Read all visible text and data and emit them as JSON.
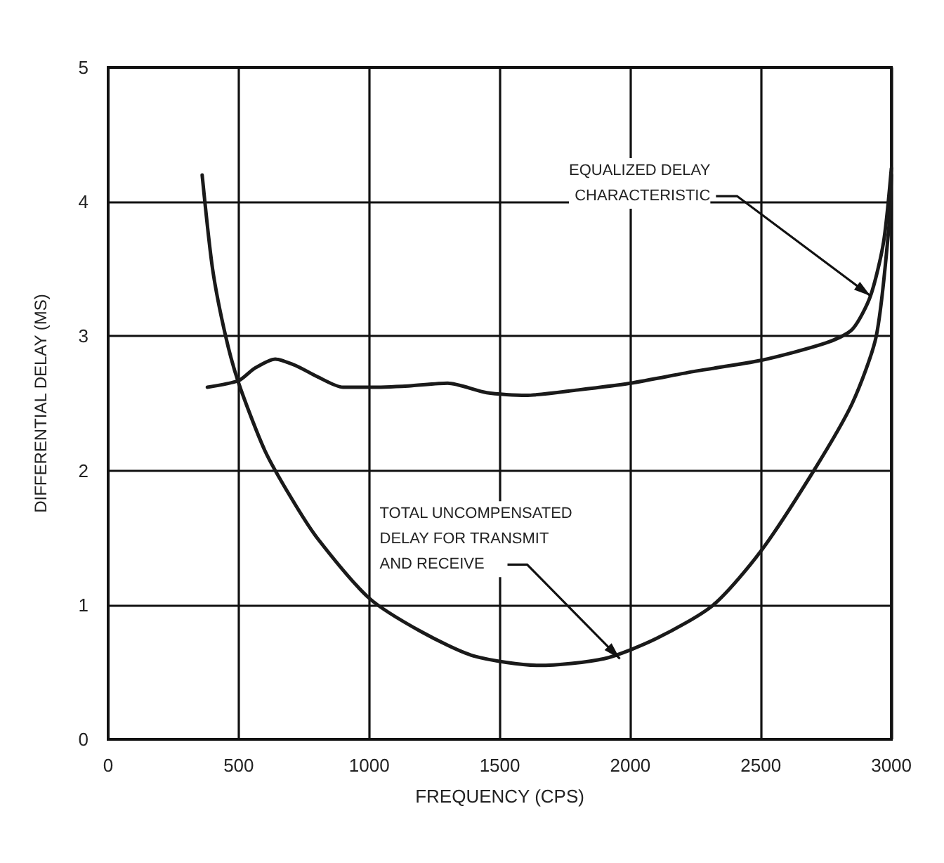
{
  "chart_data": {
    "type": "line",
    "xlabel": "FREQUENCY (CPS)",
    "ylabel": "DIFFERENTIAL DELAY (MS)",
    "xlim": [
      0,
      3000
    ],
    "xticks": [
      0,
      500,
      1000,
      1500,
      2000,
      2500,
      3000
    ],
    "ylim": [
      0,
      5
    ],
    "yticks": [
      0,
      1,
      2,
      3,
      4,
      5
    ],
    "grid": true,
    "marker": "none",
    "line_style": "solid",
    "series": [
      {
        "color": "#1a1a1a",
        "x": [
          360,
          400,
          450,
          500,
          600,
          700,
          800,
          1000,
          1200,
          1400,
          1650,
          1900,
          2100,
          2318,
          2500,
          2703,
          2850,
          2942,
          2990,
          3000
        ],
        "values": [
          4.2,
          3.5,
          3.0,
          2.65,
          2.15,
          1.8,
          1.5,
          1.05,
          0.8,
          0.62,
          0.55,
          0.6,
          0.75,
          1.0,
          1.4,
          2.0,
          2.5,
          3.0,
          3.8,
          4.2
        ]
      },
      {
        "color": "#1a1a1a",
        "x": [
          380,
          500,
          560,
          640,
          720,
          800,
          900,
          1000,
          1150,
          1300,
          1450,
          1600,
          1800,
          2000,
          2250,
          2500,
          2750,
          2850,
          2920,
          2970,
          3000
        ],
        "values": [
          2.62,
          2.67,
          2.76,
          2.83,
          2.78,
          2.7,
          2.62,
          2.62,
          2.63,
          2.65,
          2.58,
          2.56,
          2.6,
          2.65,
          2.74,
          2.82,
          2.95,
          3.05,
          3.3,
          3.7,
          4.25
        ]
      }
    ],
    "annotations": [
      {
        "text": "EQUALIZED DELAY\nCHARACTERISTIC",
        "x": 2920,
        "y": 3.3
      },
      {
        "text": "TOTAL UNCOMPENSATED\nDELAY FOR TRANSMIT\nAND RECEIVE",
        "x": 1960,
        "y": 0.6
      }
    ]
  }
}
